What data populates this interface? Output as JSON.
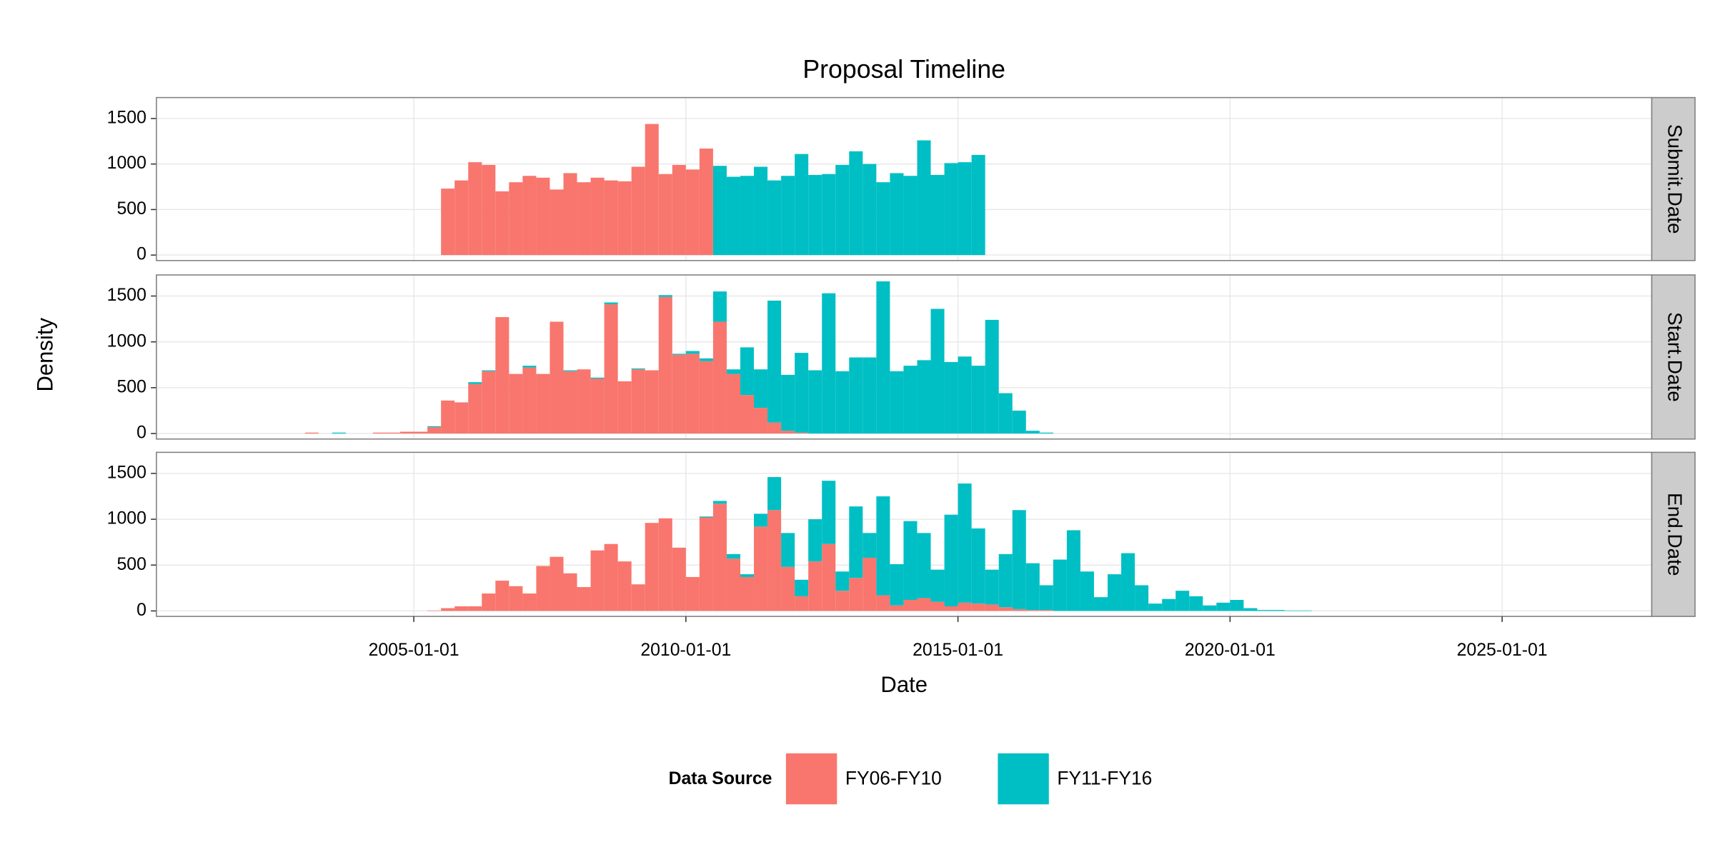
{
  "chart_data": {
    "type": "histogram",
    "title": "Proposal Timeline",
    "xlabel": "Date",
    "ylabel": "Density",
    "legend_title": "Data Source",
    "legend": "bottom",
    "stacked": true,
    "grid": true,
    "series": [
      {
        "name": "FY06-FY10",
        "color": "#f8766d"
      },
      {
        "name": "FY11-FY16",
        "color": "#00bfc4"
      }
    ],
    "xlim": [
      2000.27,
      2027.75
    ],
    "xticks": [
      {
        "value": 2005,
        "label": "2005-01-01"
      },
      {
        "value": 2010,
        "label": "2010-01-01"
      },
      {
        "value": 2015,
        "label": "2015-01-01"
      },
      {
        "value": 2020,
        "label": "2020-01-01"
      },
      {
        "value": 2025,
        "label": "2025-01-01"
      }
    ],
    "ylim": [
      -60,
      1730
    ],
    "yticks": [
      0,
      500,
      1000,
      1500
    ],
    "facets": [
      {
        "label": "Submit.Date",
        "bins": [
          2005.5,
          2005.75,
          2006,
          2006.25,
          2006.5,
          2006.75,
          2007,
          2007.25,
          2007.5,
          2007.75,
          2008,
          2008.25,
          2008.5,
          2008.75,
          2009,
          2009.25,
          2009.5,
          2009.75,
          2010,
          2010.25,
          2010.5,
          2010.75,
          2011,
          2011.25,
          2011.5,
          2011.75,
          2012,
          2012.25,
          2012.5,
          2012.75,
          2013,
          2013.25,
          2013.5,
          2013.75,
          2014,
          2014.25,
          2014.5,
          2014.75,
          2015,
          2015.25,
          2015.5
        ],
        "values": [
          [
            730,
            820,
            1020,
            990,
            700,
            800,
            870,
            850,
            720,
            900,
            800,
            850,
            820,
            810,
            970,
            1440,
            890,
            990,
            940,
            1170,
            0,
            0,
            0,
            0,
            0,
            0,
            0,
            0,
            0,
            0,
            0,
            0,
            0,
            0,
            0,
            0,
            0,
            0,
            0,
            0
          ],
          [
            0,
            0,
            0,
            0,
            0,
            0,
            0,
            0,
            0,
            0,
            0,
            0,
            0,
            0,
            0,
            0,
            0,
            0,
            0,
            0,
            980,
            860,
            870,
            970,
            820,
            870,
            1110,
            880,
            890,
            990,
            1140,
            1000,
            800,
            900,
            870,
            1260,
            880,
            1010,
            1020,
            1100
          ]
        ]
      },
      {
        "label": "Start.Date",
        "bins": [
          2003,
          2003.25,
          2003.5,
          2003.75,
          2004,
          2004.25,
          2004.5,
          2004.75,
          2005,
          2005.25,
          2005.5,
          2005.75,
          2006,
          2006.25,
          2006.5,
          2006.75,
          2007,
          2007.25,
          2007.5,
          2007.75,
          2008,
          2008.25,
          2008.5,
          2008.75,
          2009,
          2009.25,
          2009.5,
          2009.75,
          2010,
          2010.25,
          2010.5,
          2010.75,
          2011,
          2011.25,
          2011.5,
          2011.75,
          2012,
          2012.25,
          2012.5,
          2012.75,
          2013,
          2013.25,
          2013.5,
          2013.75,
          2014,
          2014.25,
          2014.5,
          2014.75,
          2015,
          2015.25,
          2015.5,
          2015.75,
          2016,
          2016.25,
          2016.5,
          2016.75,
          2017
        ],
        "values": [
          [
            10,
            0,
            0,
            0,
            0,
            10,
            10,
            20,
            20,
            70,
            360,
            340,
            540,
            680,
            1270,
            650,
            720,
            650,
            1220,
            680,
            700,
            600,
            1410,
            570,
            700,
            690,
            1490,
            860,
            870,
            790,
            1220,
            650,
            420,
            280,
            120,
            30,
            10,
            0,
            0,
            0,
            0,
            0,
            0,
            0,
            0,
            0,
            0,
            0,
            0,
            0,
            0,
            0,
            0,
            0,
            0,
            0
          ],
          [
            0,
            0,
            10,
            0,
            0,
            0,
            0,
            0,
            0,
            10,
            0,
            0,
            20,
            10,
            0,
            0,
            20,
            0,
            0,
            10,
            0,
            10,
            20,
            0,
            10,
            0,
            20,
            10,
            30,
            30,
            330,
            50,
            520,
            420,
            1330,
            610,
            870,
            690,
            1530,
            680,
            830,
            830,
            1660,
            680,
            740,
            800,
            1360,
            780,
            840,
            740,
            1240,
            440,
            250,
            30,
            10,
            0
          ]
        ]
      },
      {
        "label": "End.Date",
        "bins": [
          2005.25,
          2005.5,
          2005.75,
          2006,
          2006.25,
          2006.5,
          2006.75,
          2007,
          2007.25,
          2007.5,
          2007.75,
          2008,
          2008.25,
          2008.5,
          2008.75,
          2009,
          2009.25,
          2009.5,
          2009.75,
          2010,
          2010.25,
          2010.5,
          2010.75,
          2011,
          2011.25,
          2011.5,
          2011.75,
          2012,
          2012.25,
          2012.5,
          2012.75,
          2013,
          2013.25,
          2013.5,
          2013.75,
          2014,
          2014.25,
          2014.5,
          2014.75,
          2015,
          2015.25,
          2015.5,
          2015.75,
          2016,
          2016.25,
          2016.5,
          2016.75,
          2017,
          2017.25,
          2017.5,
          2017.75,
          2018,
          2018.25,
          2018.5,
          2018.75,
          2019,
          2019.25,
          2019.5,
          2019.75,
          2020,
          2020.25,
          2020.5,
          2020.75,
          2021,
          2021.25,
          2021.5
        ],
        "values": [
          [
            5,
            30,
            50,
            50,
            190,
            330,
            270,
            190,
            490,
            590,
            410,
            260,
            660,
            730,
            540,
            290,
            960,
            1010,
            690,
            370,
            1020,
            1170,
            570,
            370,
            920,
            1100,
            480,
            160,
            540,
            730,
            220,
            360,
            580,
            170,
            60,
            120,
            140,
            100,
            50,
            90,
            80,
            70,
            40,
            20,
            10,
            10,
            0,
            0,
            0,
            0,
            0,
            0,
            0,
            0,
            0,
            0,
            0,
            0,
            0,
            0,
            0,
            0,
            0,
            0,
            0
          ],
          [
            0,
            0,
            0,
            0,
            0,
            0,
            0,
            0,
            0,
            0,
            0,
            0,
            0,
            0,
            0,
            0,
            0,
            0,
            0,
            0,
            10,
            30,
            50,
            30,
            140,
            360,
            370,
            180,
            460,
            690,
            210,
            780,
            270,
            1080,
            450,
            860,
            710,
            350,
            1000,
            1300,
            820,
            380,
            580,
            1080,
            510,
            270,
            560,
            880,
            430,
            150,
            400,
            630,
            280,
            80,
            130,
            220,
            160,
            60,
            90,
            120,
            30,
            10,
            10,
            5,
            5
          ]
        ]
      }
    ]
  }
}
